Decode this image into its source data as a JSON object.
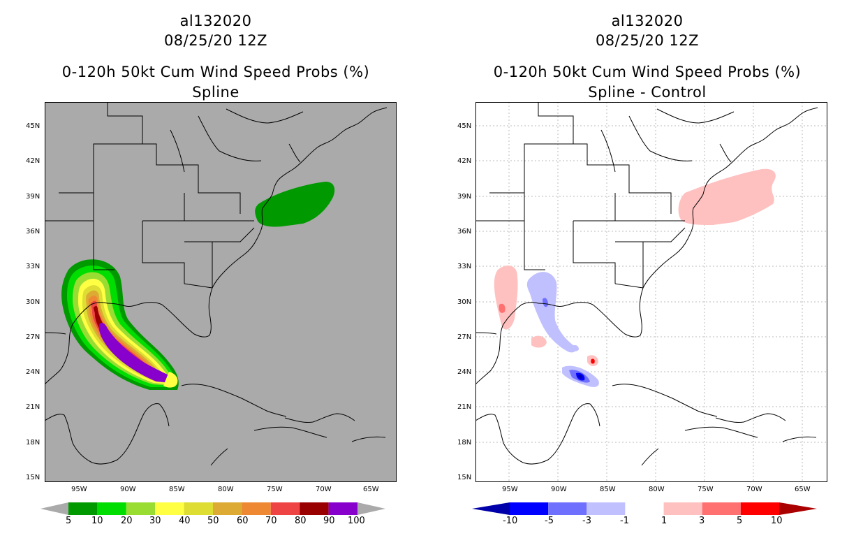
{
  "left": {
    "title1": "al132020",
    "title2": "08/25/20 12Z",
    "title3": "0-120h 50kt Cum Wind Speed Probs (%)",
    "title4": "Spline",
    "background": "#aaaaaa",
    "colorbar": {
      "labels": [
        "5",
        "10",
        "20",
        "30",
        "40",
        "50",
        "60",
        "70",
        "80",
        "90",
        "100"
      ],
      "colors": [
        "#009900",
        "#00dd00",
        "#99dd33",
        "#ffff44",
        "#dddd33",
        "#ddaa33",
        "#ee8833",
        "#ee4444",
        "#990000",
        "#8800cc"
      ]
    }
  },
  "right": {
    "title1": "al132020",
    "title2": "08/25/20 12Z",
    "title3": "0-120h 50kt Cum Wind Speed Probs (%)",
    "title4": "Spline - Control",
    "background": "#ffffff",
    "colorbar": {
      "labels": [
        "-10",
        "-5",
        "-3",
        "-1",
        "1",
        "3",
        "5",
        "10"
      ],
      "colors": [
        "#0000aa",
        "#0000ff",
        "#7070ff",
        "#c0c0ff",
        "#ffffff",
        "#ffc0c0",
        "#ff7070",
        "#ff0000",
        "#aa0000"
      ]
    }
  },
  "axes": {
    "lat_labels": [
      "45N",
      "42N",
      "39N",
      "36N",
      "33N",
      "30N",
      "27N",
      "24N",
      "21N",
      "18N",
      "15N"
    ],
    "lon_labels": [
      "95W",
      "90W",
      "85W",
      "80W",
      "75W",
      "70W",
      "65W"
    ]
  }
}
